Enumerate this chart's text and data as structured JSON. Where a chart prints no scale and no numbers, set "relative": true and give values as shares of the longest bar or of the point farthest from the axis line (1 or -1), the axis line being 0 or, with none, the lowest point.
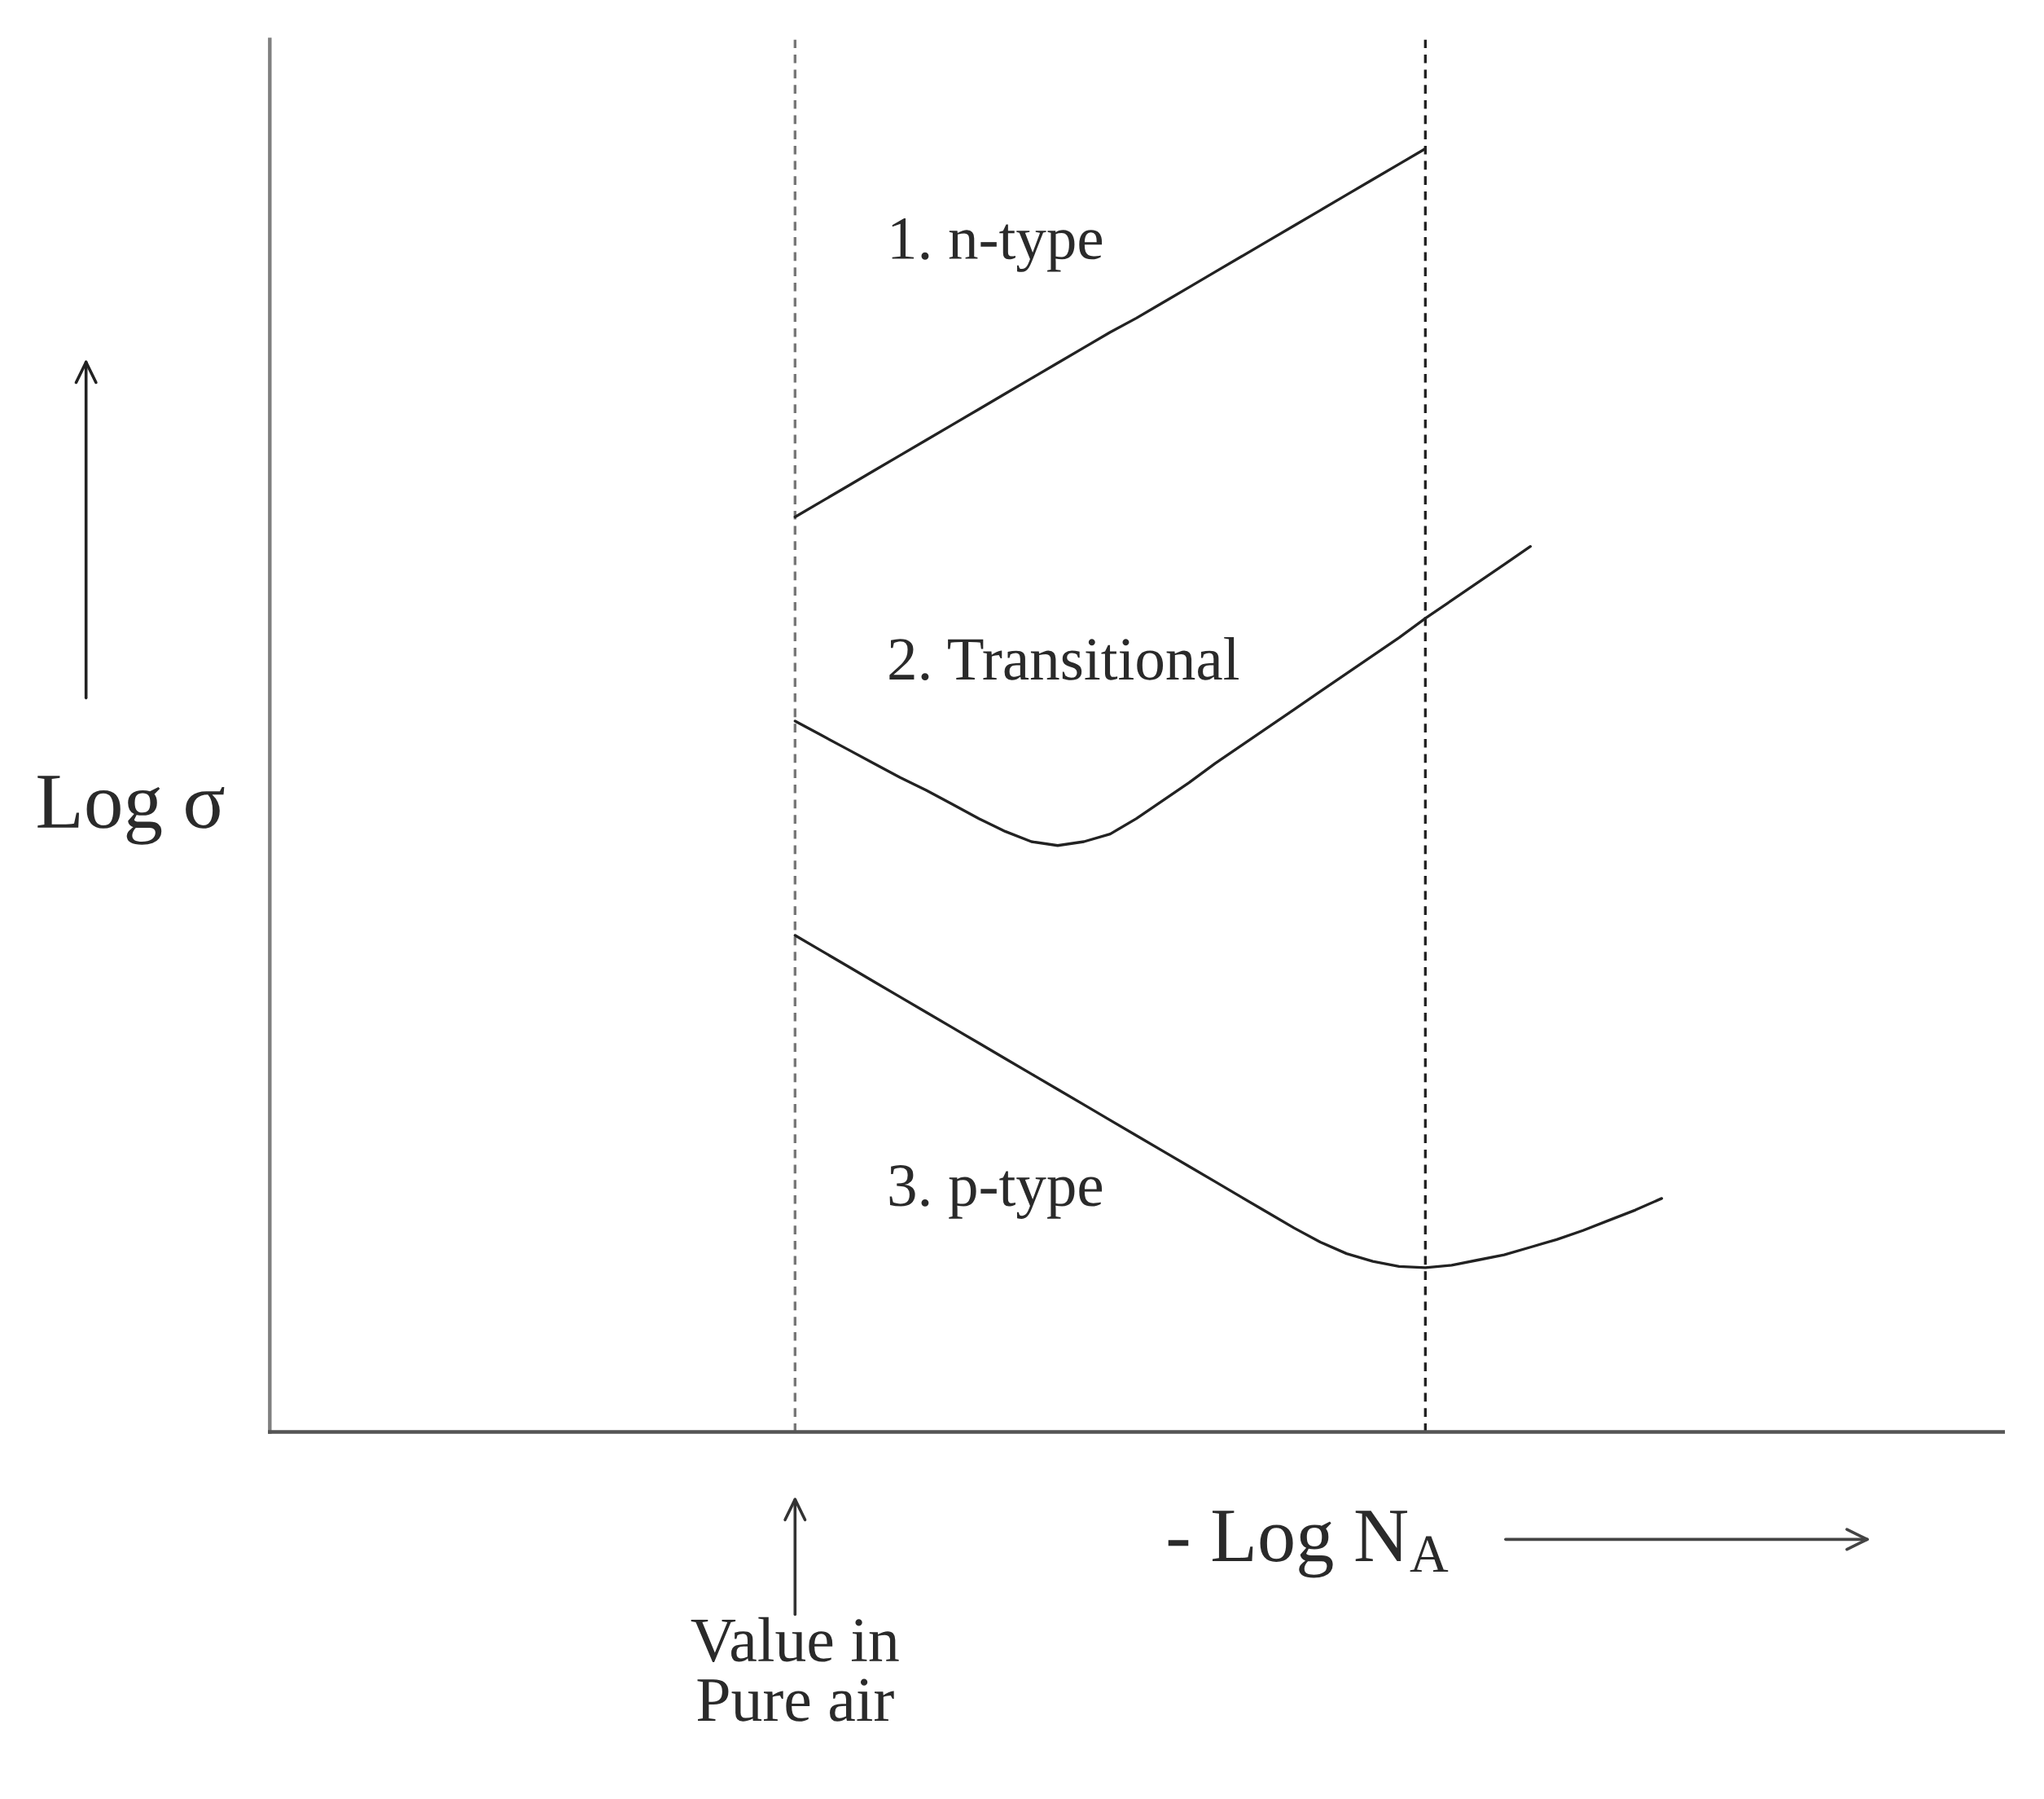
{
  "chart_data": {
    "type": "line",
    "relative": true,
    "categories": [
      null,
      null,
      null,
      null,
      null,
      null,
      null,
      null,
      null,
      null,
      null,
      null,
      null,
      null,
      null,
      null,
      null,
      null,
      null,
      null,
      null,
      null,
      null,
      null,
      null,
      null,
      null,
      null,
      null,
      null,
      null,
      null,
      null,
      null,
      null,
      null,
      null,
      null,
      null,
      null,
      null,
      null,
      null,
      null,
      null,
      null,
      null,
      null,
      null,
      null,
      null,
      null,
      null,
      null,
      null,
      null,
      null,
      null,
      null,
      null,
      null,
      null,
      null,
      null,
      null,
      null,
      null
    ],
    "series": [
      {
        "name": "1. n-type",
        "color": "#222222",
        "values": [
          null,
          null,
          null,
          null,
          null,
          null,
          null,
          null,
          null,
          null,
          null,
          null,
          null,
          null,
          null,
          null,
          null,
          null,
          null,
          null,
          0.713,
          0.725,
          0.737,
          0.749,
          0.761,
          0.773,
          0.785,
          0.797,
          0.809,
          0.821,
          0.833,
          0.845,
          0.857,
          0.868,
          0.88,
          0.892,
          0.904,
          0.916,
          0.928,
          0.94,
          0.952,
          0.964,
          0.976,
          0.988,
          1.0,
          null,
          null,
          null,
          null,
          null,
          null,
          null,
          null,
          null,
          null,
          null,
          null,
          null,
          null,
          null,
          null,
          null,
          null,
          null,
          null,
          null,
          null
        ]
      },
      {
        "name": "2. Transitional",
        "color": "#222222",
        "values": [
          null,
          null,
          null,
          null,
          null,
          null,
          null,
          null,
          null,
          null,
          null,
          null,
          null,
          null,
          null,
          null,
          null,
          null,
          null,
          null,
          0.554,
          0.543,
          0.532,
          0.521,
          0.51,
          0.5,
          0.489,
          0.478,
          0.468,
          0.46,
          0.457,
          0.46,
          0.466,
          0.478,
          0.492,
          0.506,
          0.521,
          0.535,
          0.549,
          0.563,
          0.577,
          0.591,
          0.605,
          0.619,
          0.634,
          0.648,
          0.662,
          0.676,
          0.69,
          null,
          null,
          null,
          null,
          null,
          null,
          null,
          null,
          null,
          null,
          null,
          null,
          null,
          null,
          null,
          null,
          null,
          null
        ]
      },
      {
        "name": "3. p-type",
        "color": "#222222",
        "values": [
          null,
          null,
          null,
          null,
          null,
          null,
          null,
          null,
          null,
          null,
          null,
          null,
          null,
          null,
          null,
          null,
          null,
          null,
          null,
          null,
          0.387,
          0.375,
          0.363,
          0.351,
          0.339,
          0.327,
          0.315,
          0.303,
          0.291,
          0.279,
          0.267,
          0.255,
          0.243,
          0.231,
          0.219,
          0.207,
          0.195,
          0.183,
          0.171,
          0.159,
          0.148,
          0.139,
          0.133,
          0.129,
          0.128,
          0.13,
          0.134,
          0.138,
          0.144,
          0.15,
          0.157,
          0.165,
          0.173,
          0.182,
          null,
          null,
          null,
          null,
          null,
          null,
          null,
          null,
          null,
          null,
          null,
          null,
          null
        ]
      }
    ],
    "xlabel": "- Log N$_{A}$",
    "ylabel": "Log σ",
    "annotations": [
      "Value in\nPure air"
    ]
  }
}
